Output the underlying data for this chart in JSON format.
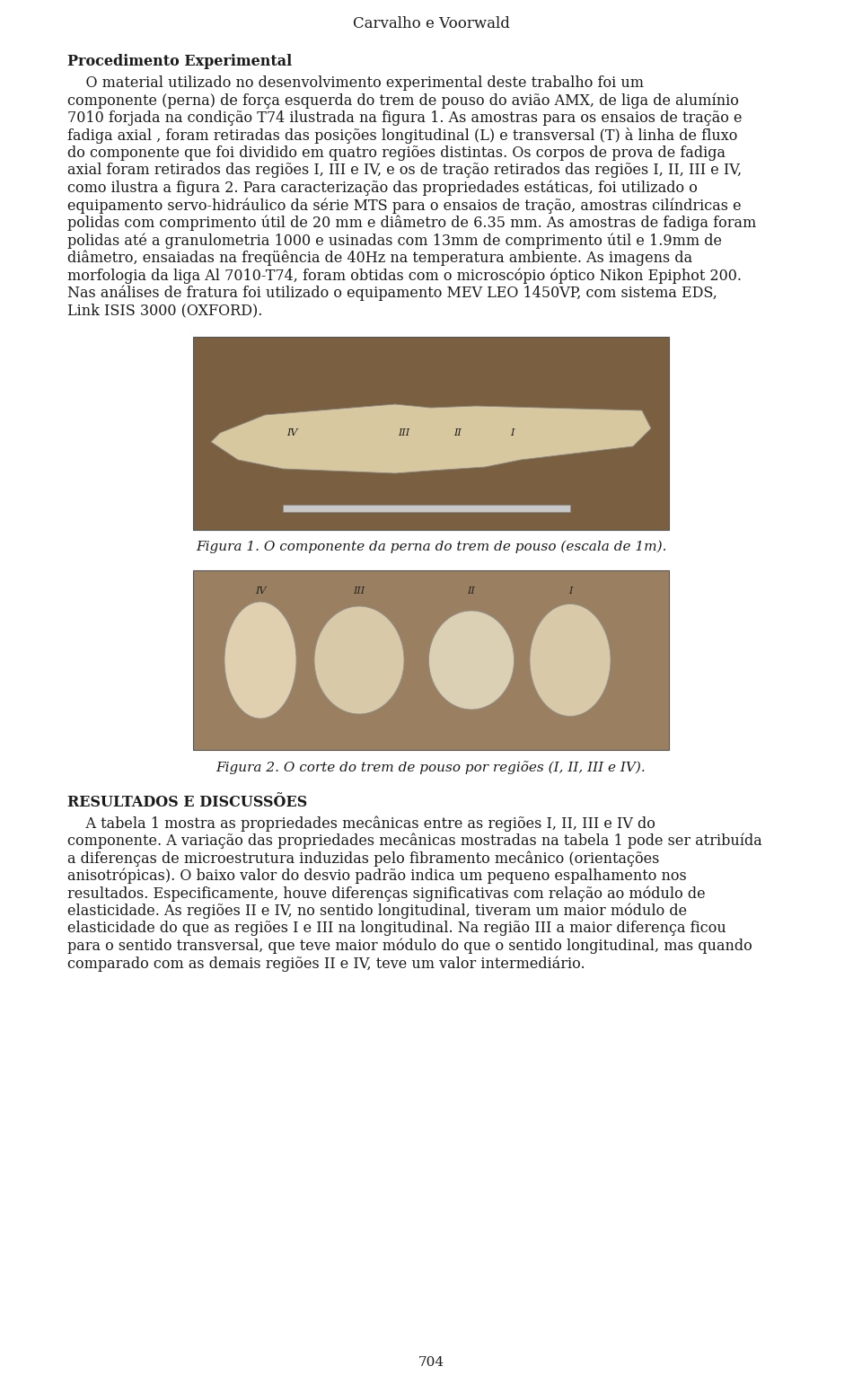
{
  "header": "Carvalho e Voorwald",
  "section1_title": "Procedimento Experimental",
  "para1_line1": "    O material utilizado no desenvolvimento experimental deste trabalho foi um",
  "para1_line2": "componente (perna) de força esquerda do trem de pouso do avião AMX, de liga de alumínio",
  "para1_line3": "7010 forjada na condição T74 ilustrada na figura 1. As amostras para os ensaios de tração e",
  "para1_line4": "fadiga axial , foram retiradas das posições longitudinal (L) e transversal (T) à linha de fluxo",
  "para1_line5": "do componente que foi dividido em quatro regiões distintas. Os corpos de prova de fadiga",
  "para1_line6": "axial foram retirados das regiões I, III e IV, e os de tração retirados das regiões I, II, III e IV,",
  "para1_line7": "como ilustra a figura 2. Para caracterização das propriedades estáticas, foi utilizado o",
  "para1_line8": "equipamento servo-hidráulico da série MTS para o ensaios de tração, amostras cilíndricas e",
  "para1_line9": "polidas com comprimento útil de 20 mm e diâmetro de 6.35 mm. As amostras de fadiga foram",
  "para1_line10": "polidas até a granulometria 1000 e usinadas com 13mm de comprimento útil e 1.9mm de",
  "para1_line11": "diâmetro, ensaiadas na freqüência de 40Hz na temperatura ambiente. As imagens da",
  "para1_line12": "morfologia da liga Al 7010-T74, foram obtidas com o microscópio óptico Nikon Epiphot 200.",
  "para1_line13": "Nas análises de fratura foi utilizado o equipamento MEV LEO 1450VP, com sistema EDS,",
  "para1_line14": "Link ISIS 3000 (OXFORD).",
  "fig1_caption": "Figura 1. O componente da perna do trem de pouso (escala de 1m).",
  "fig2_caption": "Figura 2. O corte do trem de pouso por regiões (I, II, III e IV).",
  "section2_title": "RESULTADOS E DISCUSSÕES",
  "para2_line1": "    A tabela 1 mostra as propriedades mecânicas entre as regiões I, II, III e IV do",
  "para2_line2": "componente. A variação das propriedades mecânicas mostradas na tabela 1 pode ser atribuída",
  "para2_line3": "a diferenças de microestrutura induzidas pelo fibramento mecânico (orientações",
  "para2_line4": "anisotrópicas). O baixo valor do desvio padrão indica um pequeno espalhamento nos",
  "para2_line5": "resultados. Especificamente, houve diferenças significativas com relação ao módulo de",
  "para2_line6": "elasticidade. As regiões II e IV, no sentido longitudinal, tiveram um maior módulo de",
  "para2_line7": "elasticidade do que as regiões I e III na longitudinal. Na região III a maior diferença ficou",
  "para2_line8": "para o sentido transversal, que teve maior módulo do que o sentido longitudinal, mas quando",
  "para2_line9": "comparado com as demais regiões II e IV, teve um valor intermediário.",
  "page_number": "704",
  "background_color": "#ffffff",
  "text_color": "#1a1a1a",
  "fig1_bg": "#7a6040",
  "fig2_bg": "#9a8060",
  "component_color": "#d8c8a0",
  "scale_bar_color": "#c8c8c8"
}
